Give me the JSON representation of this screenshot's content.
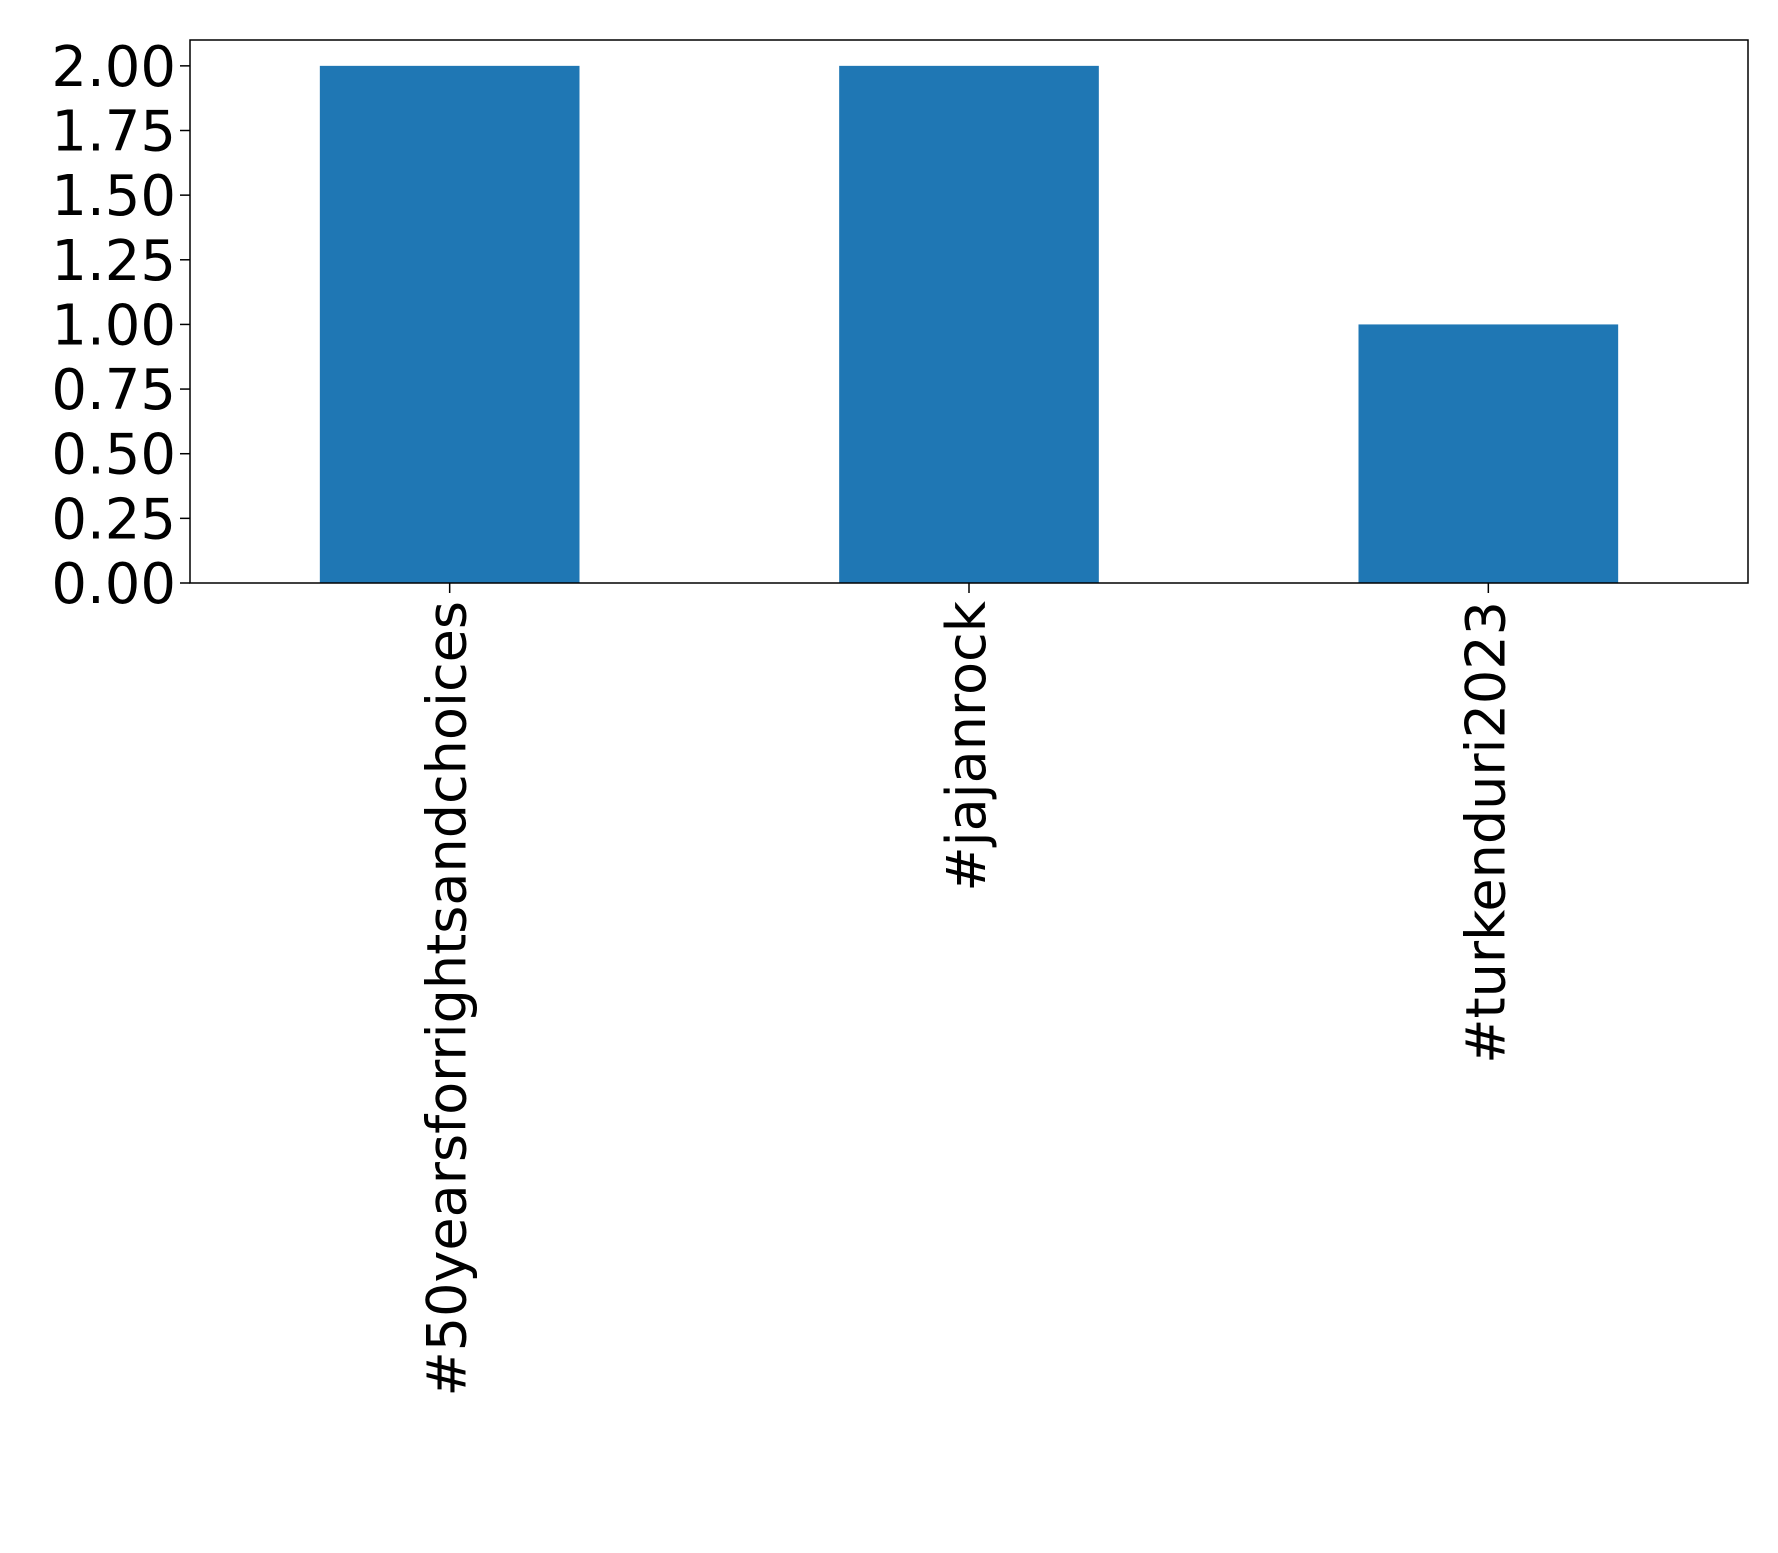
{
  "chart_data": {
    "type": "bar",
    "title": "",
    "xlabel": "",
    "ylabel": "",
    "categories": [
      "#50yearsforrightsandchoices",
      "#jajanrock",
      "#turkenduri2023"
    ],
    "values": [
      2,
      2,
      1
    ],
    "ylim": [
      0,
      2.1
    ],
    "yticks": [
      0,
      0.25,
      0.5,
      0.75,
      1.0,
      1.25,
      1.5,
      1.75,
      2.0
    ],
    "ytick_labels": [
      "0.00",
      "0.25",
      "0.50",
      "0.75",
      "1.00",
      "1.25",
      "1.50",
      "1.75",
      "2.00"
    ],
    "x_tick_rotation": "vertical",
    "grid": false,
    "legend": "none",
    "bar_color": "#1f77b4"
  }
}
